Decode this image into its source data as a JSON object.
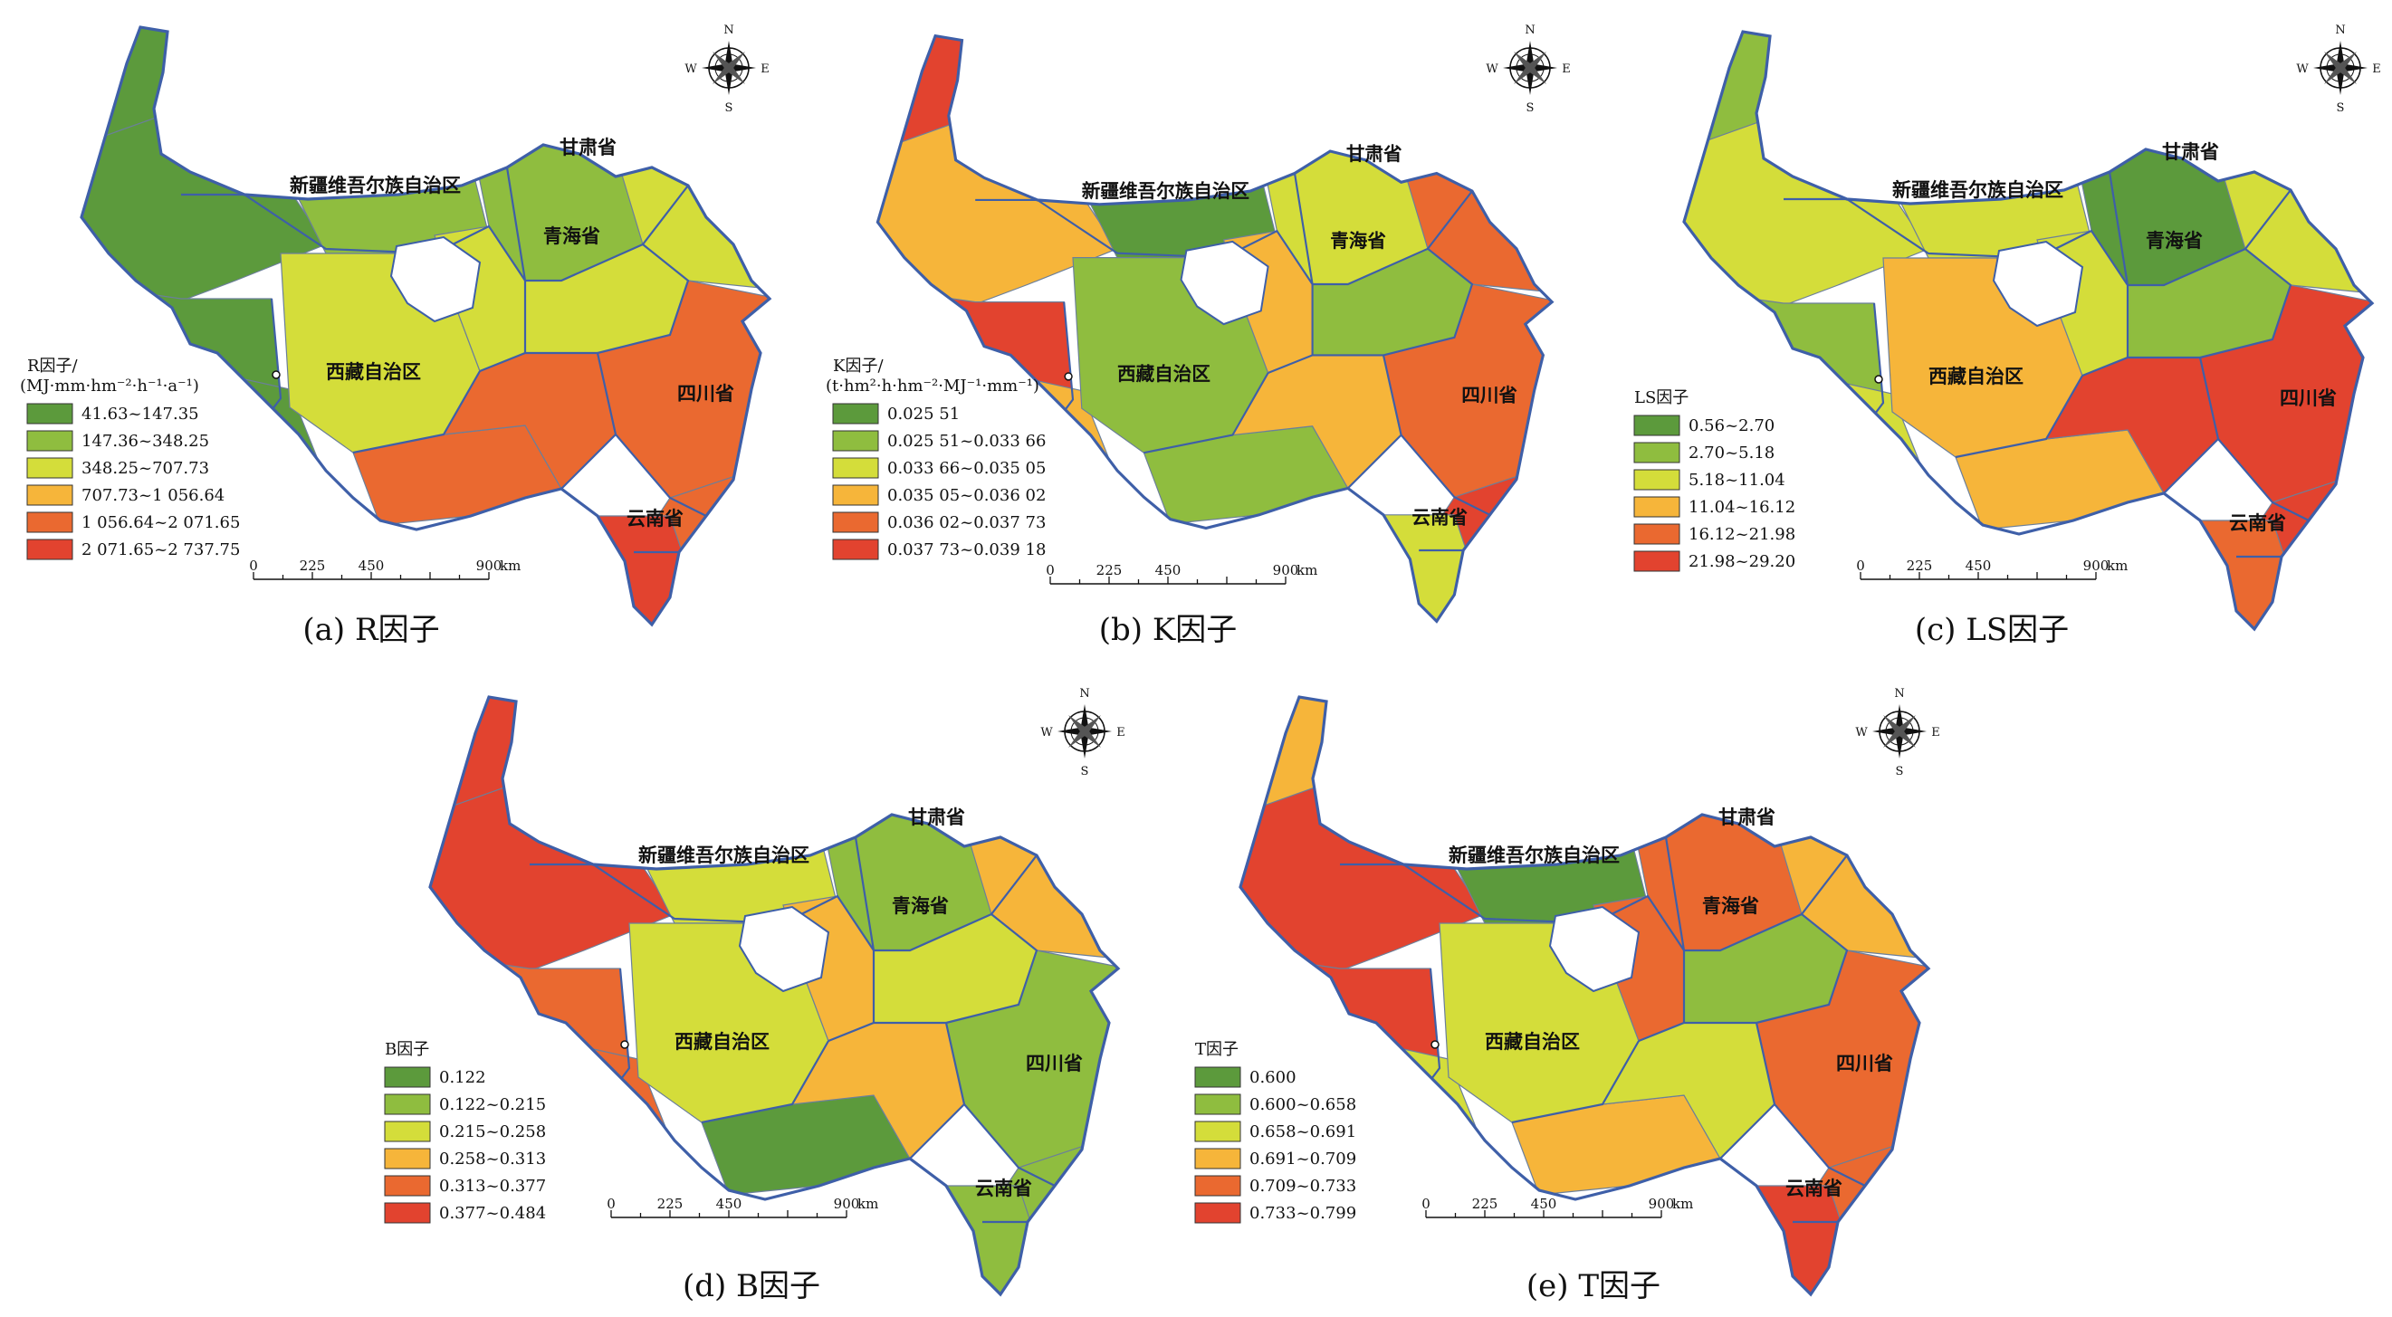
{
  "regions": {
    "xinjiang": "新疆维吾尔族自治区",
    "gansu": "甘肃省",
    "qinghai": "青海省",
    "xizang": "西藏自治区",
    "sichuan": "四川省",
    "yunnan": "云南省"
  },
  "scale": {
    "ticks": [
      "0",
      "225",
      "450",
      "900"
    ],
    "unit": "km"
  },
  "compass": {
    "n": "N",
    "s": "S",
    "e": "E",
    "w": "W"
  },
  "palette": [
    "#5c9a3c",
    "#8fbd3f",
    "#d4dd3a",
    "#f6b53a",
    "#ea6930",
    "#e2432f"
  ],
  "panels": [
    {
      "key": "a",
      "caption": "(a) R因子",
      "legend_title": "R因子/",
      "legend_unit": "(MJ·mm·hm⁻²·h⁻¹·a⁻¹)",
      "classes": [
        "41.63~147.35",
        "147.36~348.25",
        "348.25~707.73",
        "707.73~1 056.64",
        "1 056.64~2 071.65",
        "2 071.65~2 737.75"
      ],
      "fills": {
        "nw": 0,
        "north": 1,
        "north2": 2,
        "qh": 1,
        "west": 0,
        "center": 2,
        "ne": 2,
        "east": 4,
        "se": 4,
        "sw": 0,
        "south": 4,
        "south2": 4,
        "yn": 5,
        "gs": 2,
        "nwtip": 0
      }
    },
    {
      "key": "b",
      "caption": "(b) K因子",
      "legend_title": "K因子/",
      "legend_unit": "(t·hm²·h·hm⁻²·MJ⁻¹·mm⁻¹)",
      "classes": [
        "0.025 51",
        "0.025 51~0.033 66",
        "0.033 66~0.035 05",
        "0.035 05~0.036 02",
        "0.036 02~0.037 73",
        "0.037 73~0.039 18"
      ],
      "fills": {
        "nw": 3,
        "north": 0,
        "north2": 3,
        "qh": 2,
        "west": 5,
        "center": 1,
        "ne": 1,
        "east": 4,
        "se": 5,
        "sw": 3,
        "south": 1,
        "south2": 3,
        "yn": 2,
        "gs": 4,
        "nwtip": 5
      }
    },
    {
      "key": "c",
      "caption": "(c) LS因子",
      "legend_title": "LS因子",
      "legend_unit": "",
      "classes": [
        "0.56~2.70",
        "2.70~5.18",
        "5.18~11.04",
        "11.04~16.12",
        "16.12~21.98",
        "21.98~29.20"
      ],
      "fills": {
        "nw": 2,
        "north": 2,
        "north2": 2,
        "qh": 0,
        "west": 1,
        "center": 3,
        "ne": 1,
        "east": 5,
        "se": 5,
        "sw": 2,
        "south": 3,
        "south2": 5,
        "yn": 4,
        "gs": 2,
        "nwtip": 1
      }
    },
    {
      "key": "d",
      "caption": "(d) B因子",
      "legend_title": "B因子",
      "legend_unit": "",
      "classes": [
        "0.122",
        "0.122~0.215",
        "0.215~0.258",
        "0.258~0.313",
        "0.313~0.377",
        "0.377~0.484"
      ],
      "fills": {
        "nw": 5,
        "north": 2,
        "north2": 3,
        "qh": 1,
        "west": 4,
        "center": 2,
        "ne": 2,
        "east": 1,
        "se": 1,
        "sw": 4,
        "south": 0,
        "south2": 3,
        "yn": 1,
        "gs": 3,
        "nwtip": 5
      }
    },
    {
      "key": "e",
      "caption": "(e) T因子",
      "legend_title": "T因子",
      "legend_unit": "",
      "classes": [
        "0.600",
        "0.600~0.658",
        "0.658~0.691",
        "0.691~0.709",
        "0.709~0.733",
        "0.733~0.799"
      ],
      "fills": {
        "nw": 5,
        "north": 0,
        "north2": 4,
        "qh": 4,
        "west": 5,
        "center": 2,
        "ne": 1,
        "east": 4,
        "se": 4,
        "sw": 2,
        "south": 3,
        "south2": 2,
        "yn": 5,
        "gs": 3,
        "nwtip": 3
      }
    }
  ]
}
